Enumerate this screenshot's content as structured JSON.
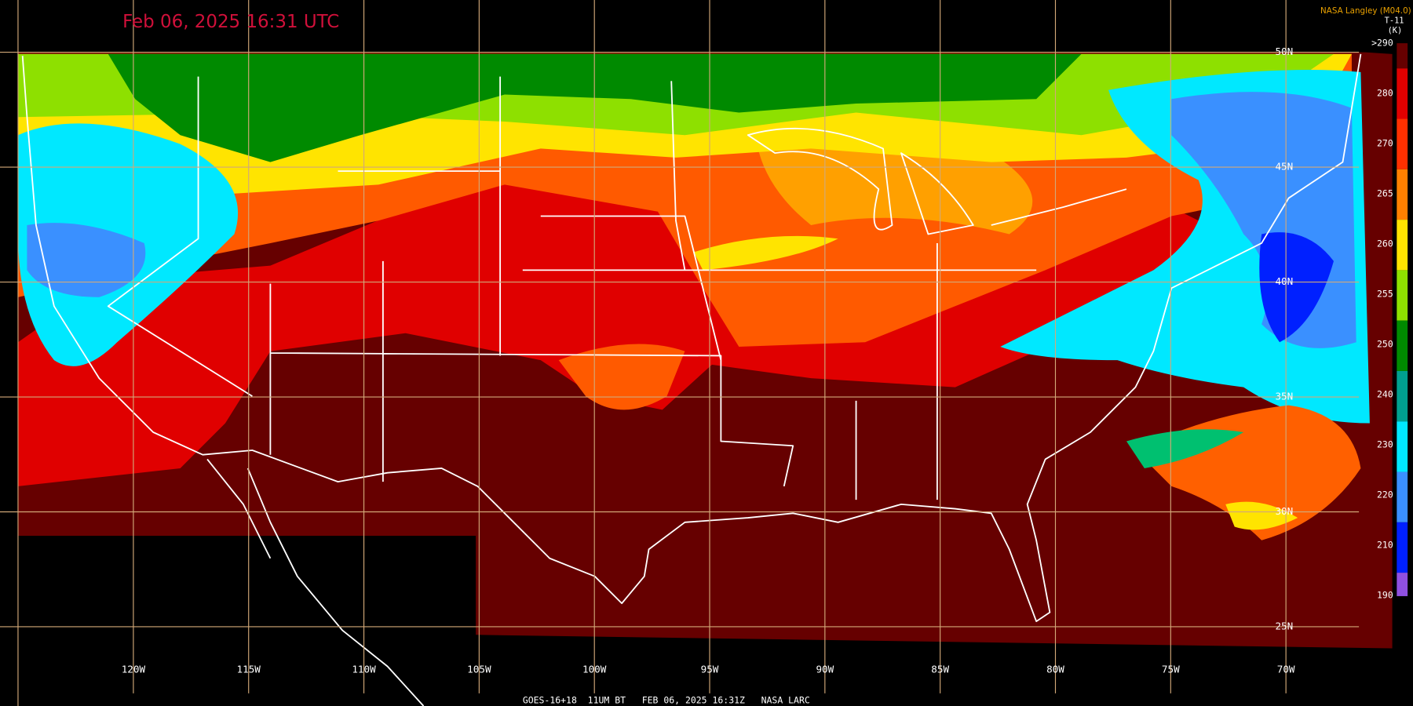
{
  "header": {
    "title": "Feb 06, 2025 16:31 UTC",
    "credit": "NASA Langley (M04.0)",
    "product": "T-11",
    "units": "(K)"
  },
  "colorbar": {
    "labels": [
      ">290",
      "280",
      "270",
      "265",
      "260",
      "255",
      "250",
      "240",
      "230",
      "220",
      "210",
      "190"
    ]
  },
  "longitude_labels": [
    "120W",
    "115W",
    "110W",
    "105W",
    "100W",
    "95W",
    "90W",
    "85W",
    "80W",
    "75W",
    "70W"
  ],
  "latitude_labels": [
    "50N",
    "45N",
    "40N",
    "35N",
    "30N",
    "25N"
  ],
  "footer": {
    "caption": "GOES-16+18  11UM BT   FEB 06, 2025 16:31Z   NASA LARC"
  }
}
